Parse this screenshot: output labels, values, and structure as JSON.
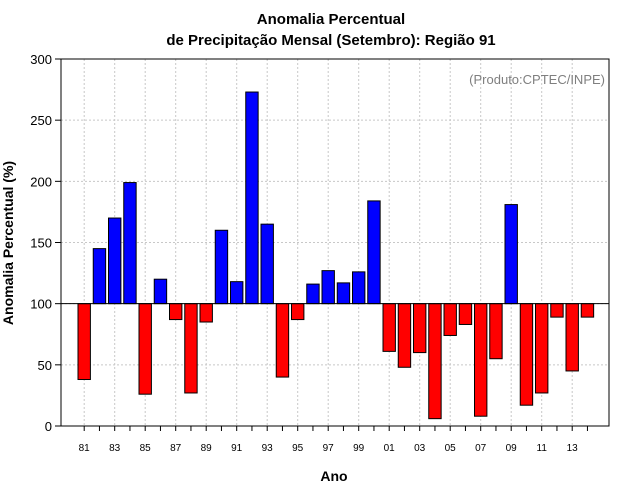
{
  "chart_data": {
    "type": "bar",
    "title": "Anomalia Percentual",
    "subtitle": "de Precipitação Mensal (Setembro): Região 91",
    "xlabel": "Ano",
    "ylabel": "Anomalia Percentual (%)",
    "credit": "(Produto:CPTEC/INPE)",
    "ylim": [
      0,
      300
    ],
    "yticks": [
      0,
      50,
      100,
      150,
      200,
      250,
      300
    ],
    "baseline": 100,
    "grid": true,
    "colors": {
      "above": "#0000ff",
      "below": "#ff0000",
      "grid": "#c8c8c8"
    },
    "x_tick_labels": [
      "81",
      "83",
      "85",
      "87",
      "89",
      "91",
      "93",
      "95",
      "97",
      "99",
      "01",
      "03",
      "05",
      "07",
      "09",
      "11",
      "13"
    ],
    "categories": [
      "81",
      "82",
      "83",
      "84",
      "85",
      "86",
      "87",
      "88",
      "89",
      "90",
      "91",
      "92",
      "93",
      "94",
      "95",
      "96",
      "97",
      "98",
      "99",
      "00",
      "01",
      "02",
      "03",
      "04",
      "05",
      "06",
      "07",
      "08",
      "09",
      "10",
      "11",
      "12",
      "13",
      "14"
    ],
    "values": [
      38,
      145,
      170,
      199,
      26,
      120,
      87,
      27,
      85,
      160,
      118,
      273,
      165,
      40,
      87,
      116,
      127,
      117,
      126,
      184,
      61,
      48,
      60,
      6,
      74,
      83,
      8,
      55,
      181,
      17,
      27,
      89,
      45,
      89
    ]
  }
}
